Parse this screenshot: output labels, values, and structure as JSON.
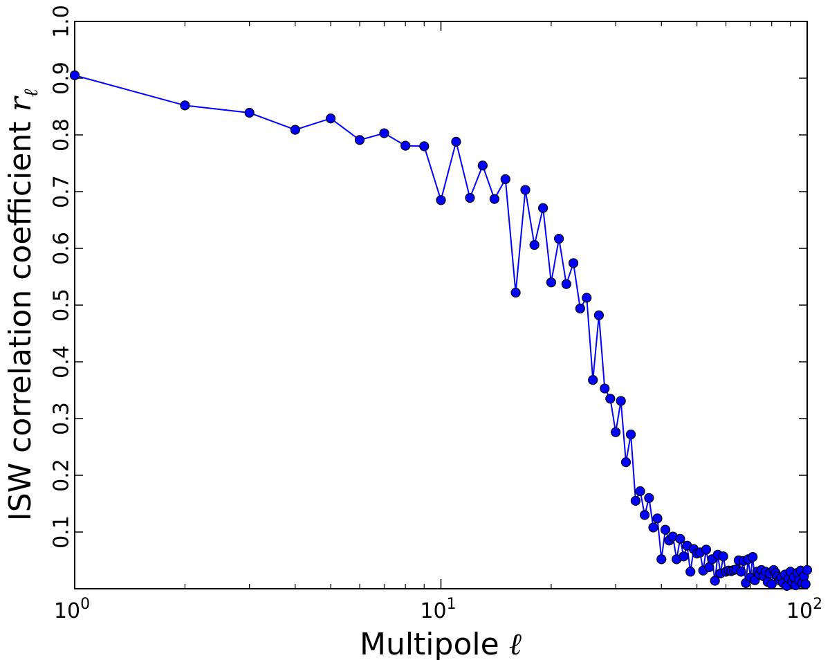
{
  "chart_data": {
    "type": "line",
    "title": "",
    "xlabel": "Multipole ℓ",
    "ylabel": "ISW correlation coefficient rℓ",
    "xscale": "log",
    "xlim": [
      1,
      100
    ],
    "ylim": [
      0.0,
      1.0
    ],
    "grid": false,
    "legend": "none",
    "line_color": "#0000ff",
    "marker_color": "#0000ff",
    "x_ticks": [
      {
        "base": "10",
        "exp": "0"
      },
      {
        "base": "10",
        "exp": "1"
      },
      {
        "base": "10",
        "exp": "2"
      }
    ],
    "y_ticks": [
      "0.1",
      "0.2",
      "0.3",
      "0.4",
      "0.5",
      "0.6",
      "0.7",
      "0.8",
      "0.9",
      "1.0"
    ],
    "series": [
      {
        "x": [
          1,
          2,
          3,
          4,
          5,
          6,
          7,
          8,
          9,
          10,
          11,
          12,
          13,
          14,
          15,
          16,
          17,
          18,
          19,
          20,
          21,
          22,
          23,
          24,
          25,
          26,
          27,
          28,
          29,
          30,
          31,
          32,
          33,
          34,
          35,
          36,
          37,
          38,
          39,
          40,
          41,
          42,
          43,
          44,
          45,
          46,
          47,
          48,
          49,
          50,
          51,
          52,
          53,
          54,
          55,
          56,
          57,
          58,
          59,
          60,
          61,
          62,
          63,
          64,
          65,
          66,
          67,
          68,
          69,
          70,
          71,
          72,
          73,
          74,
          75,
          76,
          77,
          78,
          79,
          80,
          81,
          82,
          83,
          84,
          85,
          86,
          87,
          88,
          89,
          90,
          91,
          92,
          93,
          94,
          95,
          96,
          97,
          98,
          99,
          100
        ],
        "y": [
          0.905,
          0.852,
          0.839,
          0.809,
          0.829,
          0.791,
          0.803,
          0.781,
          0.78,
          0.685,
          0.788,
          0.689,
          0.746,
          0.687,
          0.722,
          0.522,
          0.703,
          0.606,
          0.671,
          0.54,
          0.617,
          0.537,
          0.574,
          0.494,
          0.513,
          0.368,
          0.482,
          0.353,
          0.335,
          0.276,
          0.331,
          0.223,
          0.272,
          0.155,
          0.172,
          0.13,
          0.16,
          0.108,
          0.124,
          0.052,
          0.104,
          0.085,
          0.092,
          0.052,
          0.088,
          0.057,
          0.076,
          0.03,
          0.07,
          0.062,
          0.064,
          0.032,
          0.069,
          0.038,
          0.052,
          0.014,
          0.06,
          0.027,
          0.057,
          0.03,
          0.032,
          0.031,
          0.033,
          0.034,
          0.05,
          0.03,
          0.049,
          0.01,
          0.052,
          0.02,
          0.056,
          0.015,
          0.03,
          0.025,
          0.033,
          0.022,
          0.03,
          0.012,
          0.027,
          0.008,
          0.033,
          0.028,
          0.022,
          0.015,
          0.02,
          0.01,
          0.025,
          0.005,
          0.018,
          0.03,
          0.012,
          0.02,
          0.006,
          0.028,
          0.015,
          0.032,
          0.01,
          0.022,
          0.008,
          0.033
        ]
      }
    ]
  }
}
